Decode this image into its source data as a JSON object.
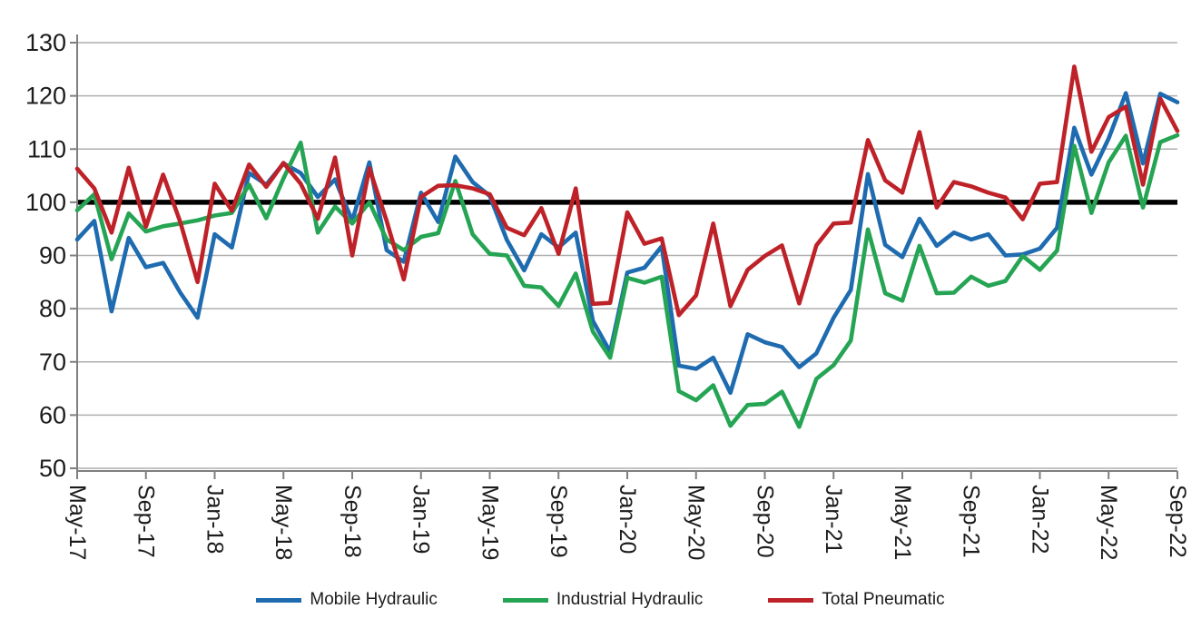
{
  "chart_data": {
    "type": "line",
    "title": "",
    "xlabel": "",
    "ylabel": "",
    "ylim": [
      50,
      130
    ],
    "yticks": [
      50,
      60,
      70,
      80,
      90,
      100,
      110,
      120,
      130
    ],
    "baseline": 100,
    "grid": true,
    "legend_position": "bottom",
    "x_tick_every": 4,
    "x_tick_labels": [
      "May-17",
      "Sep-17",
      "Jan-18",
      "May-18",
      "Sep-18",
      "Jan-19",
      "May-19",
      "Sep-19",
      "Jan-20",
      "May-20",
      "Sep-20",
      "Jan-21",
      "May-21",
      "Sep-21",
      "Jan-22",
      "May-22",
      "Sep-22"
    ],
    "months": [
      "May-17",
      "Jun-17",
      "Jul-17",
      "Aug-17",
      "Sep-17",
      "Oct-17",
      "Nov-17",
      "Dec-17",
      "Jan-18",
      "Feb-18",
      "Mar-18",
      "Apr-18",
      "May-18",
      "Jun-18",
      "Jul-18",
      "Aug-18",
      "Sep-18",
      "Oct-18",
      "Nov-18",
      "Dec-18",
      "Jan-19",
      "Feb-19",
      "Mar-19",
      "Apr-19",
      "May-19",
      "Jun-19",
      "Jul-19",
      "Aug-19",
      "Sep-19",
      "Oct-19",
      "Nov-19",
      "Dec-19",
      "Jan-20",
      "Feb-20",
      "Mar-20",
      "Apr-20",
      "May-20",
      "Jun-20",
      "Jul-20",
      "Aug-20",
      "Sep-20",
      "Oct-20",
      "Nov-20",
      "Dec-20",
      "Jan-21",
      "Feb-21",
      "Mar-21",
      "Apr-21",
      "May-21",
      "Jun-21",
      "Jul-21",
      "Aug-21",
      "Sep-21",
      "Oct-21",
      "Nov-21",
      "Dec-21",
      "Jan-22",
      "Feb-22",
      "Mar-22",
      "Apr-22",
      "May-22",
      "Jun-22",
      "Jul-22",
      "Aug-22",
      "Sep-22"
    ],
    "series": [
      {
        "name": "Mobile Hydraulic",
        "color": "#1E6BB0",
        "values": [
          93,
          96.5,
          79.5,
          93.3,
          87.8,
          88.6,
          83,
          78.3,
          94,
          91.5,
          105.5,
          103.3,
          107.3,
          105.5,
          101,
          104.3,
          96.5,
          107.5,
          91,
          88.8,
          101.8,
          96.3,
          108.6,
          103.8,
          101.2,
          92.9,
          87.2,
          94,
          91.5,
          94.3,
          77.7,
          71.9,
          86.8,
          87.7,
          91.7,
          69.3,
          68.7,
          70.8,
          64.2,
          75.2,
          73.7,
          72.8,
          69,
          71.6,
          78.3,
          83.5,
          105.3,
          92,
          89.7,
          96.9,
          91.8,
          94.3,
          93,
          94,
          90,
          90.2,
          91.3,
          95.2,
          114,
          105.2,
          112,
          120.5,
          107.3,
          120.4,
          118.8
        ]
      },
      {
        "name": "Industrial Hydraulic",
        "color": "#25A454",
        "values": [
          98.5,
          101.5,
          89.3,
          97.9,
          94.5,
          95.5,
          96,
          96.6,
          97.5,
          98,
          103.3,
          97,
          104.5,
          111.2,
          94.3,
          99.2,
          96,
          100,
          93,
          91,
          93.5,
          94.2,
          104,
          94,
          90.3,
          90,
          84.3,
          84,
          80.5,
          86.6,
          75.7,
          70.8,
          85.8,
          84.9,
          86,
          64.5,
          62.8,
          65.6,
          58,
          61.9,
          62.1,
          64.4,
          57.8,
          66.8,
          69.4,
          74,
          94.9,
          82.9,
          81.5,
          91.8,
          82.9,
          83,
          86,
          84.3,
          85.2,
          89.9,
          87.3,
          90.9,
          110.6,
          98,
          107.5,
          112.5,
          99,
          111.3,
          112.6
        ]
      },
      {
        "name": "Total Pneumatic",
        "color": "#BE2228",
        "values": [
          106.3,
          102.6,
          94.3,
          106.5,
          95.4,
          105.2,
          96.3,
          85,
          103.5,
          98.4,
          107.1,
          102.9,
          107.4,
          103.5,
          96.9,
          108.4,
          90,
          106.4,
          96.5,
          85.5,
          101,
          103.1,
          103.2,
          102.6,
          101.5,
          95.2,
          93.8,
          98.9,
          90.3,
          102.6,
          80.9,
          81.1,
          98.1,
          92.2,
          93.2,
          78.8,
          82.5,
          96,
          80.5,
          87.3,
          89.9,
          91.9,
          81,
          91.9,
          96,
          96.2,
          111.7,
          104.1,
          101.8,
          113.2,
          99,
          103.8,
          103,
          101.8,
          100.9,
          96.8,
          103.5,
          103.8,
          125.5,
          109.5,
          116,
          118,
          103.3,
          119.5,
          113.4
        ]
      }
    ],
    "colors": {
      "gridline": "#AFAFAF",
      "axis": "#7F7F7F",
      "baseline": "#000000",
      "text": "#1C1C1C"
    }
  }
}
